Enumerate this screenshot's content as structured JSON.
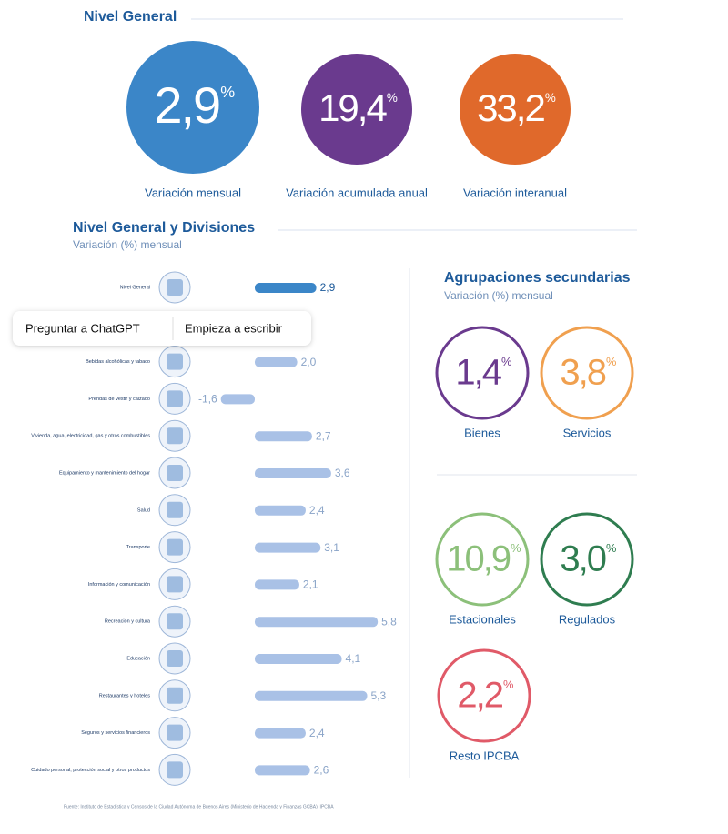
{
  "header": {
    "title": "Nivel General"
  },
  "kpis": [
    {
      "value": "2,9",
      "unit": "%",
      "label": "Variación mensual",
      "color": "#3b86c8"
    },
    {
      "value": "19,4",
      "unit": "%",
      "label": "Variación acumulada anual",
      "color": "#6a3a8e"
    },
    {
      "value": "33,2",
      "unit": "%",
      "label": "Variación interanual",
      "color": "#e0692b"
    }
  ],
  "chart_data": {
    "type": "bar",
    "title": "Nivel General y Divisiones",
    "subtitle": "Variación (%) mensual",
    "categories": [
      "Nivel General",
      null,
      "Bebidas alcohólicas y tabaco",
      "Prendas de vestir y calzado",
      "Vivienda, agua, electricidad, gas y otros combustibles",
      "Equipamiento y mantenimiento del hogar",
      "Salud",
      "Transporte",
      "Información y comunicación",
      "Recreación y cultura",
      "Educación",
      "Restaurantes y hoteles",
      "Seguros y servicios financieros",
      "Cuidado personal, protección social y otros productos"
    ],
    "values": [
      2.9,
      null,
      2.0,
      -1.6,
      2.7,
      3.6,
      2.4,
      3.1,
      2.1,
      5.8,
      4.1,
      5.3,
      2.4,
      2.6
    ],
    "value_labels": [
      "2,9",
      null,
      "2,0",
      "-1,6",
      "2,7",
      "3,6",
      "2,4",
      "3,1",
      "2,1",
      "5,8",
      "4,1",
      "5,3",
      "2,4",
      "2,6"
    ],
    "colors": [
      "#3b86c8",
      null,
      "#a9c1e6",
      "#a9c1e6",
      "#a9c1e6",
      "#a9c1e6",
      "#a9c1e6",
      "#a9c1e6",
      "#a9c1e6",
      "#a9c1e6",
      "#a9c1e6",
      "#a9c1e6",
      "#a9c1e6",
      "#a9c1e6"
    ]
  },
  "secondary": {
    "title": "Agrupaciones secundarias",
    "subtitle": "Variación (%) mensual",
    "items": [
      {
        "value": "1,4",
        "unit": "%",
        "label": "Bienes",
        "color": "#6a3a8e"
      },
      {
        "value": "3,8",
        "unit": "%",
        "label": "Servicios",
        "color": "#f0a04f"
      },
      {
        "value": "10,9",
        "unit": "%",
        "label": "Estacionales",
        "color": "#8cc07a"
      },
      {
        "value": "3,0",
        "unit": "%",
        "label": "Regulados",
        "color": "#2f7d50"
      },
      {
        "value": "2,2",
        "unit": "%",
        "label": "Resto IPCBA",
        "color": "#e05a68"
      }
    ]
  },
  "popup": {
    "buttons": [
      "Preguntar a ChatGPT",
      "Empieza a escribir"
    ]
  },
  "footer": "Fuente: Instituto de Estadística y Censos de la Ciudad Autónoma de Buenos Aires (Ministerio de Hacienda y Finanzas GCBA). IPCBA"
}
